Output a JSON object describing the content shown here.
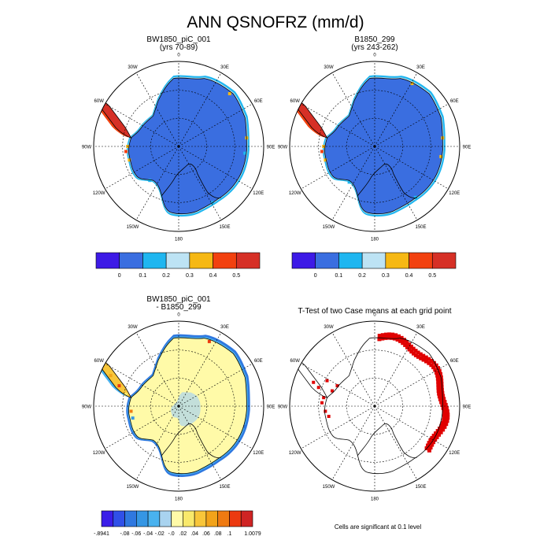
{
  "title": "ANN QSNOFRZ (mm/d)",
  "panels": [
    {
      "id": "p1",
      "title": "BW1850_piC_001",
      "subtitle": "(yrs 70-89)"
    },
    {
      "id": "p2",
      "title": "B1850_299",
      "subtitle": "(yrs 243-262)"
    },
    {
      "id": "p3",
      "title": "BW1850_piC_001",
      "subtitle": "- B1850_299"
    },
    {
      "id": "p4",
      "title": "T-Test of two Case means at each grid point",
      "subtitle": ""
    }
  ],
  "map_labels": {
    "lon": [
      "0",
      "30E",
      "60E",
      "90E",
      "120E",
      "150E",
      "180",
      "150W",
      "120W",
      "90W",
      "60W",
      "30W"
    ]
  },
  "colorbar_top": {
    "colors": [
      "#3d1ae6",
      "#3a6ee0",
      "#1fb6f0",
      "#bde3f4",
      "#f6b814",
      "#f2410f",
      "#d63026"
    ],
    "labels": [
      "0",
      "0.1",
      "0.2",
      "0.3",
      "0.4",
      "0.5"
    ]
  },
  "colorbar_diff": {
    "colors": [
      "#3b1ee8",
      "#3050e8",
      "#2f78e0",
      "#3596e4",
      "#49b2ef",
      "#a9d3ef",
      "#fffaa8",
      "#f9e96b",
      "#f8c63a",
      "#f2a31a",
      "#ef7a12",
      "#ec3a10",
      "#cf2424"
    ],
    "labels": [
      "-.8941",
      "-.08",
      "-.06",
      "-.04",
      "-.02",
      "-.0",
      ".02",
      ".04",
      ".06",
      ".08",
      ".1",
      "1.0079"
    ]
  },
  "footnote": "Cells are significant at 0.1 level",
  "chart_data": [
    {
      "type": "heatmap",
      "title": "BW1850_piC_001",
      "subtitle": "(yrs 70-89)",
      "projection": "south polar stereographic",
      "field": "QSNOFRZ",
      "units": "mm/d",
      "interior_value": 0.05,
      "coastal_range": [
        0.1,
        0.3
      ],
      "peninsula_max": 0.55
    },
    {
      "type": "heatmap",
      "title": "B1850_299",
      "subtitle": "(yrs 243-262)",
      "projection": "south polar stereographic",
      "field": "QSNOFRZ",
      "units": "mm/d",
      "interior_value": 0.05,
      "coastal_range": [
        0.1,
        0.3
      ],
      "peninsula_max": 0.55
    },
    {
      "type": "heatmap",
      "title": "BW1850_piC_001",
      "subtitle": "- B1850_299",
      "projection": "south polar stereographic",
      "field": "difference",
      "interior_value": 0.01,
      "coastal_range": [
        -0.06,
        -0.02
      ],
      "peninsula_max": 0.1
    },
    {
      "type": "heatmap",
      "title": "T-Test of two Case means at each grid point",
      "projection": "south polar stereographic",
      "significance_level": 0.1,
      "significant_regions": [
        "East Antarctic coast 0-150E",
        "Antarctic Peninsula"
      ]
    }
  ]
}
